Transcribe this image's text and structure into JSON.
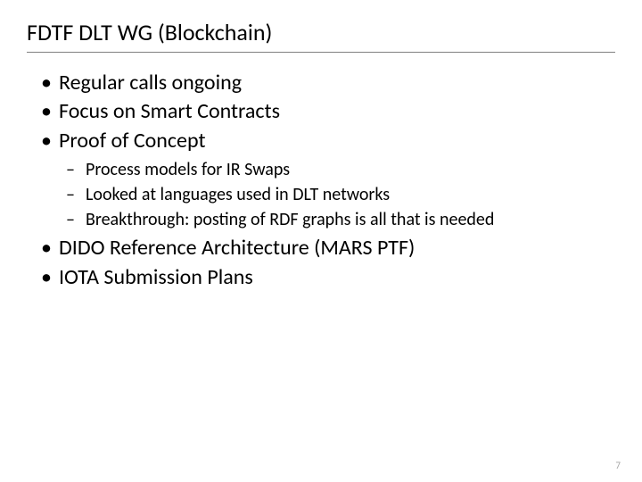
{
  "slide": {
    "title": "FDTF DLT WG (Blockchain)",
    "bullets": [
      {
        "text": "Regular calls ongoing"
      },
      {
        "text": "Focus on Smart Contracts"
      },
      {
        "text": "Proof of Concept",
        "subs": [
          "Process models for IR Swaps",
          "Looked at languages used in DLT networks",
          "Breakthrough: posting of RDF graphs is all that is needed"
        ]
      },
      {
        "text": "DIDO Reference Architecture (MARS PTF)"
      },
      {
        "text": "IOTA Submission Plans"
      }
    ],
    "page_number": "7"
  },
  "style": {
    "title_fontsize": 26,
    "bullet_fontsize": 24,
    "sub_fontsize": 20,
    "pagenum_fontsize": 11,
    "text_color": "#000000",
    "pagenum_color": "#a6a6a6",
    "hr_color": "#808080",
    "background": "#ffffff",
    "font_family": "Calibri"
  }
}
